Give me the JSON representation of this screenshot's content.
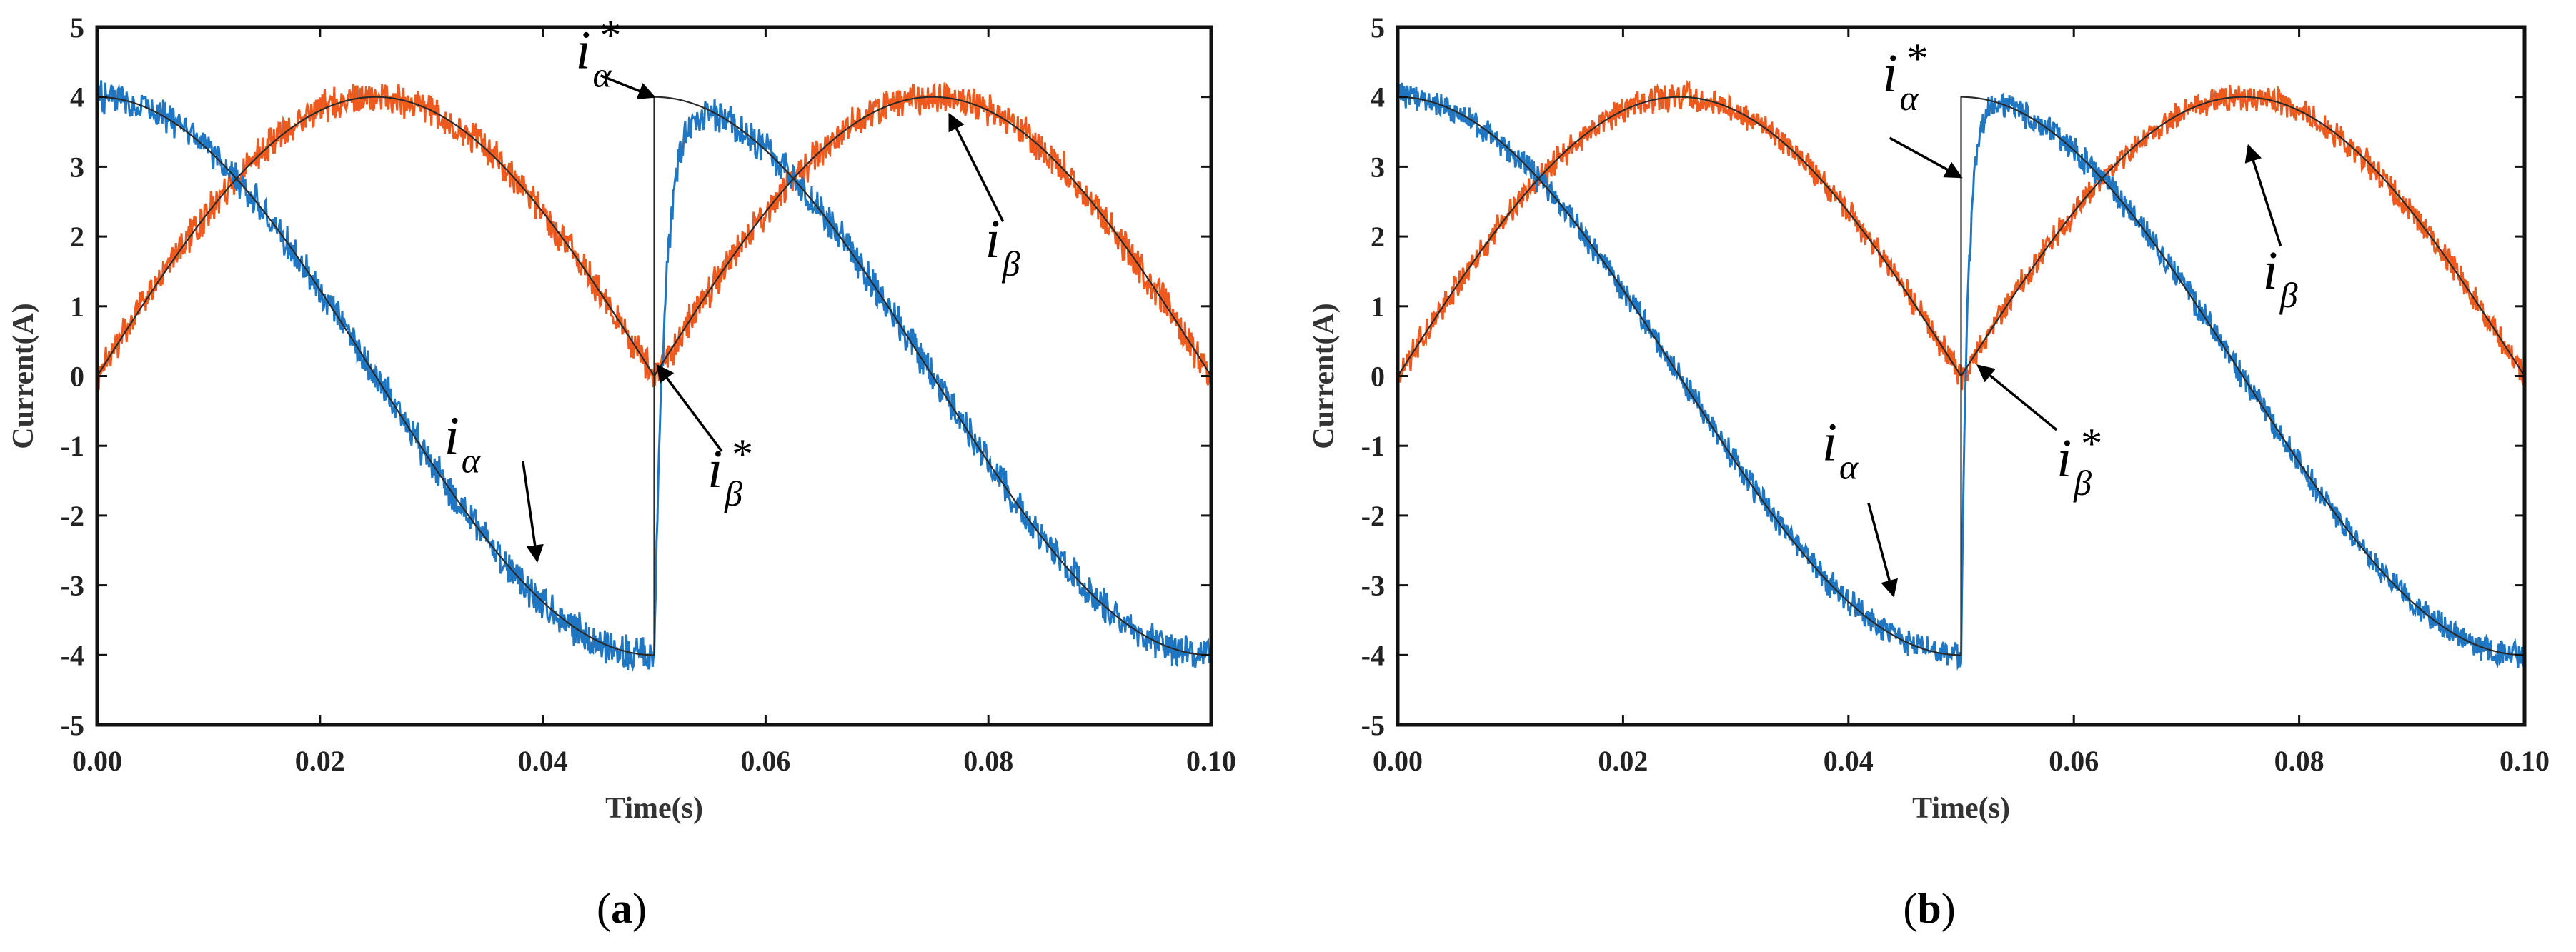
{
  "chart_data": [
    {
      "type": "line",
      "panel_label": "a",
      "xlabel": "Time(s)",
      "ylabel": "Current(A)",
      "xlim": [
        0,
        0.1
      ],
      "ylim": [
        -5,
        5
      ],
      "x_ticks": [
        "0.00",
        "0.02",
        "0.04",
        "0.06",
        "0.08",
        "0.10"
      ],
      "y_ticks": [
        "5",
        "4",
        "3",
        "2",
        "1",
        "0",
        "-1",
        "-2",
        "-3",
        "-4",
        "-5"
      ],
      "step_time": 0.05,
      "amplitude": 4,
      "period": 0.1,
      "alpha_rise_time": 0.003,
      "noise_amplitude": 0.28,
      "series": [
        {
          "name": "i_alpha_ref",
          "role": "reference",
          "color": "#2a2a2a",
          "description": "4cos(2π·10t) for t<0.05; 4cos(2π·10(t-0.05)) after"
        },
        {
          "name": "i_beta_ref",
          "role": "reference",
          "color": "#2a2a2a",
          "description": "4sin(2π·10t) for t<0.05; 4sin(2π·10(t-0.05)) after"
        },
        {
          "name": "i_alpha",
          "role": "measured",
          "color": "#1f77c4"
        },
        {
          "name": "i_beta",
          "role": "measured",
          "color": "#ee5a1e"
        }
      ],
      "annotations": {
        "i_alpha_star": {
          "main": "i",
          "sub": "α",
          "sup": "*",
          "target": [
            0.05,
            4.0
          ]
        },
        "i_beta": {
          "main": "i",
          "sub": "β",
          "sup": "",
          "target": [
            0.0765,
            3.75
          ]
        },
        "i_alpha": {
          "main": "i",
          "sub": "α",
          "sup": "",
          "target": [
            0.0395,
            -2.65
          ]
        },
        "i_beta_star": {
          "main": "i",
          "sub": "β",
          "sup": "*",
          "target": [
            0.0503,
            0.15
          ]
        }
      }
    },
    {
      "type": "line",
      "panel_label": "b",
      "xlabel": "Time(s)",
      "ylabel": "Current(A)",
      "xlim": [
        0,
        0.1
      ],
      "ylim": [
        -5,
        5
      ],
      "x_ticks": [
        "0.00",
        "0.02",
        "0.04",
        "0.06",
        "0.08",
        "0.10"
      ],
      "y_ticks": [
        "5",
        "4",
        "3",
        "2",
        "1",
        "0",
        "-1",
        "-2",
        "-3",
        "-4",
        "-5"
      ],
      "step_time": 0.05,
      "amplitude": 4,
      "period": 0.1,
      "alpha_rise_time": 0.0018,
      "noise_amplitude": 0.22,
      "series": [
        {
          "name": "i_alpha_ref",
          "role": "reference",
          "color": "#2a2a2a"
        },
        {
          "name": "i_beta_ref",
          "role": "reference",
          "color": "#2a2a2a"
        },
        {
          "name": "i_alpha",
          "role": "measured",
          "color": "#1f77c4"
        },
        {
          "name": "i_beta",
          "role": "measured",
          "color": "#ee5a1e"
        }
      ],
      "annotations": {
        "i_alpha_star": {
          "main": "i",
          "sub": "α",
          "sup": "*",
          "target": [
            0.05,
            2.85
          ]
        },
        "i_beta": {
          "main": "i",
          "sub": "β",
          "sup": "",
          "target": [
            0.0755,
            3.3
          ]
        },
        "i_alpha": {
          "main": "i",
          "sub": "α",
          "sup": "",
          "target": [
            0.044,
            -3.15
          ]
        },
        "i_beta_star": {
          "main": "i",
          "sub": "β",
          "sup": "*",
          "target": [
            0.0515,
            0.15
          ]
        }
      }
    }
  ]
}
